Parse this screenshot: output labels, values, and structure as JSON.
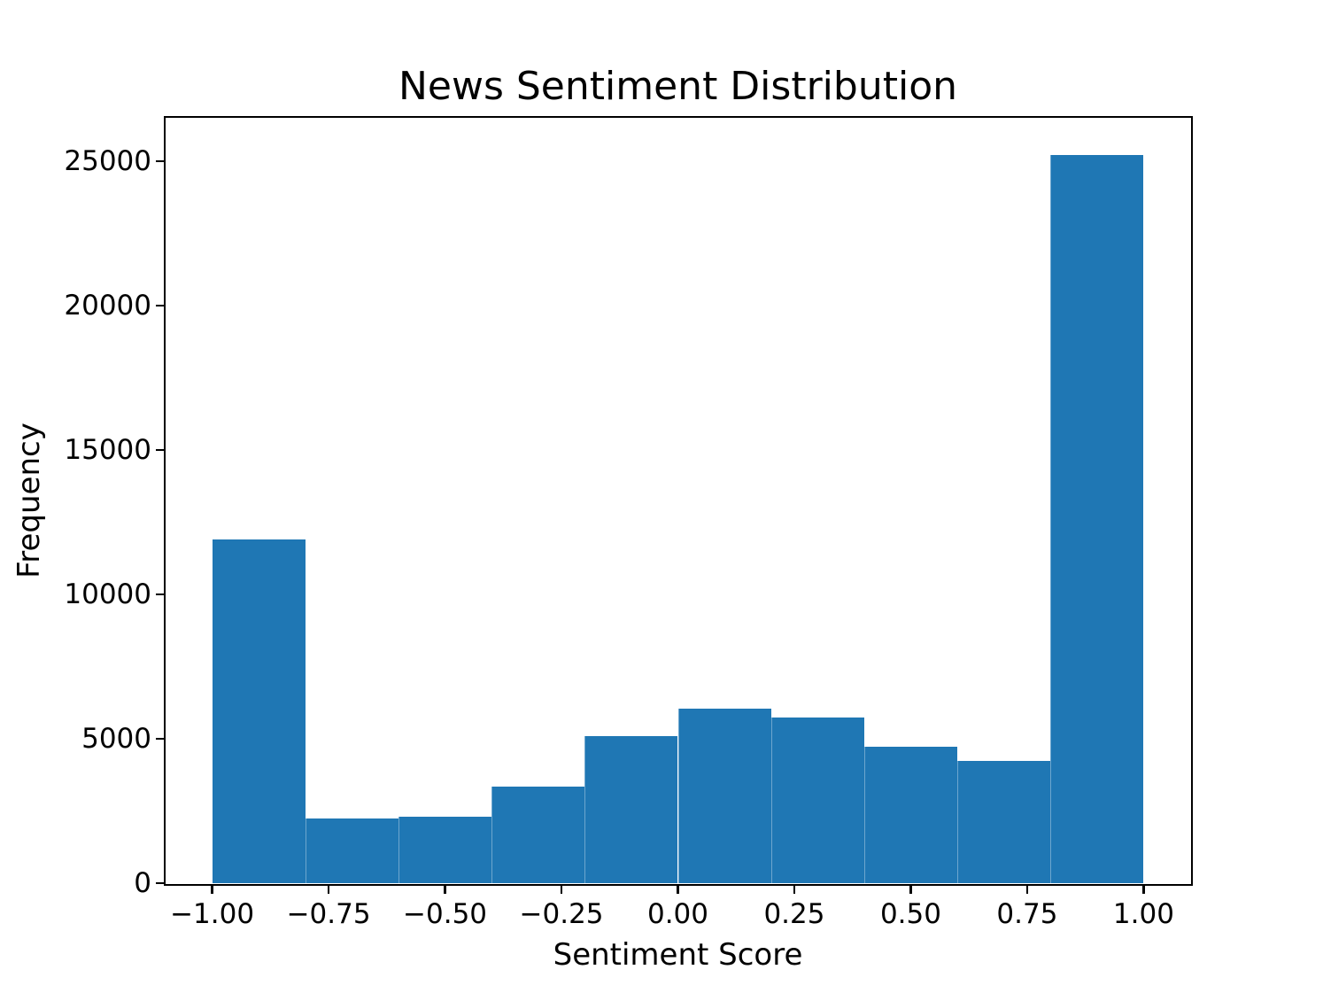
{
  "chart_data": {
    "type": "bar",
    "subtype": "histogram",
    "title": "News Sentiment Distribution",
    "xlabel": "Sentiment Score",
    "ylabel": "Frequency",
    "bar_color": "#1f77b4",
    "axis_color": "#000000",
    "grid": false,
    "legend": null,
    "bin_edges": [
      -1.0,
      -0.8,
      -0.6,
      -0.4,
      -0.2,
      0.0,
      0.2,
      0.4,
      0.6,
      0.8,
      1.0
    ],
    "counts": [
      11900,
      2230,
      2310,
      3340,
      5080,
      6030,
      5730,
      4720,
      4220,
      25200
    ],
    "xlim": [
      -1.1,
      1.1
    ],
    "ylim": [
      0,
      26500
    ],
    "x_ticks": [
      {
        "value": -1.0,
        "label": "−1.00"
      },
      {
        "value": -0.75,
        "label": "−0.75"
      },
      {
        "value": -0.5,
        "label": "−0.50"
      },
      {
        "value": -0.25,
        "label": "−0.25"
      },
      {
        "value": 0.0,
        "label": "0.00"
      },
      {
        "value": 0.25,
        "label": "0.25"
      },
      {
        "value": 0.5,
        "label": "0.50"
      },
      {
        "value": 0.75,
        "label": "0.75"
      },
      {
        "value": 1.0,
        "label": "1.00"
      }
    ],
    "y_ticks": [
      {
        "value": 0,
        "label": "0"
      },
      {
        "value": 5000,
        "label": "5000"
      },
      {
        "value": 10000,
        "label": "10000"
      },
      {
        "value": 15000,
        "label": "15000"
      },
      {
        "value": 20000,
        "label": "20000"
      },
      {
        "value": 25000,
        "label": "25000"
      }
    ]
  }
}
